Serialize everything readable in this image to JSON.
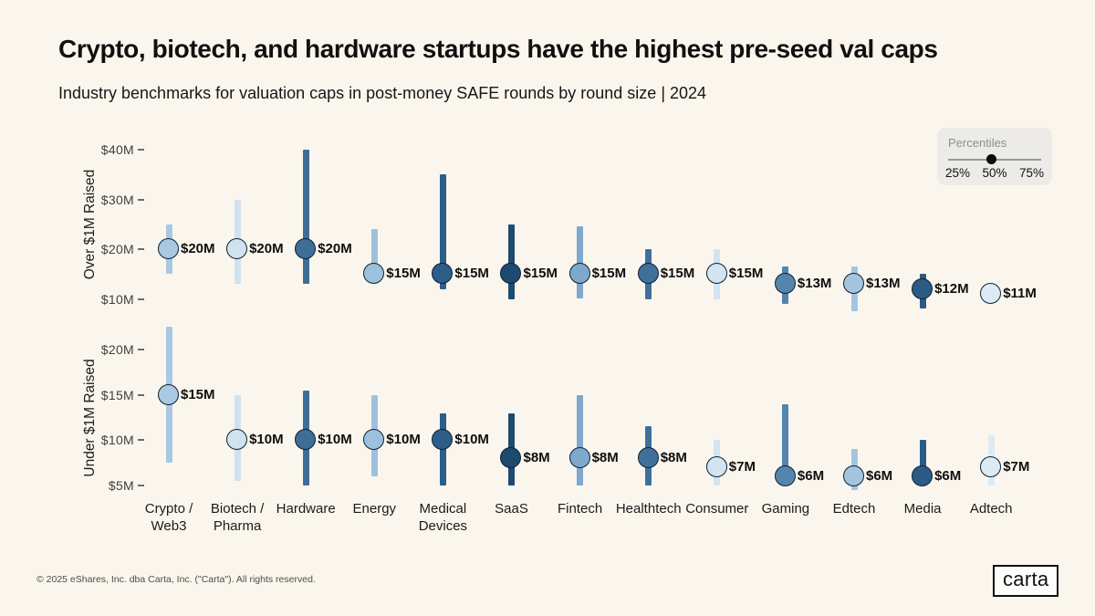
{
  "header": {
    "title": "Crypto, biotech, and hardware startups have the highest pre-seed val caps",
    "subtitle": "Industry benchmarks for valuation caps in post-money SAFE rounds by round size | 2024"
  },
  "legend": {
    "title": "Percentiles",
    "ticks": [
      "25%",
      "50%",
      "75%"
    ]
  },
  "footer": {
    "copyright": "© 2025 eShares, Inc. dba Carta, Inc. (\"Carta\"). All rights reserved.",
    "logo_text": "carta"
  },
  "colors": {
    "background": "#FAF6ED",
    "dot_outline": "#0D2133",
    "legend_background": "#ECEBE7"
  },
  "chart_data": {
    "type": "range-dot",
    "title": "Crypto, biotech, and hardware startups have the highest pre-seed val caps",
    "subtitle": "Industry benchmarks for valuation caps in post-money SAFE rounds by round size | 2024",
    "legend": "Percentiles: 25% 50% 75% (bar = 25th–75th percentile, dot = median)",
    "categories": [
      "Crypto /\nWeb3",
      "Biotech /\nPharma",
      "Hardware",
      "Energy",
      "Medical\nDevices",
      "SaaS",
      "Fintech",
      "Healthtech",
      "Consumer",
      "Gaming",
      "Edtech",
      "Media",
      "Adtech"
    ],
    "industry_colors": [
      "#A9C8E2",
      "#D0E1EF",
      "#3E6D96",
      "#9DC1DD",
      "#2C5E88",
      "#1F4A70",
      "#7FA9CC",
      "#40709A",
      "#D2E4F1",
      "#5585AD",
      "#A4C5E0",
      "#2B5A84",
      "#DCEAF5"
    ],
    "unit": "USD millions (valuation cap)",
    "panels": [
      {
        "label": "Over $1M Raised",
        "ylim": [
          8.5,
          41.5
        ],
        "y_ticks": [
          {
            "value": 10,
            "label": "$10M"
          },
          {
            "value": 20,
            "label": "$20M"
          },
          {
            "value": 30,
            "label": "$30M"
          },
          {
            "value": 40,
            "label": "$40M"
          }
        ],
        "points": [
          {
            "category": "Crypto / Web3",
            "p25": 15,
            "p50": 20,
            "p75": 25,
            "label": "$20M"
          },
          {
            "category": "Biotech / Pharma",
            "p25": 13,
            "p50": 20,
            "p75": 30,
            "label": "$20M"
          },
          {
            "category": "Hardware",
            "p25": 13,
            "p50": 20,
            "p75": 40,
            "label": "$20M"
          },
          {
            "category": "Energy",
            "p25": 13,
            "p50": 15,
            "p75": 24,
            "label": "$15M"
          },
          {
            "category": "Medical Devices",
            "p25": 12,
            "p50": 15,
            "p75": 35,
            "label": "$15M"
          },
          {
            "category": "SaaS",
            "p25": 10,
            "p50": 15,
            "p75": 25,
            "label": "$15M"
          },
          {
            "category": "Fintech",
            "p25": 10,
            "p50": 15,
            "p75": 24.5,
            "label": "$15M"
          },
          {
            "category": "Healthtech",
            "p25": 10,
            "p50": 15,
            "p75": 20,
            "label": "$15M"
          },
          {
            "category": "Consumer",
            "p25": 10,
            "p50": 15,
            "p75": 20,
            "label": "$15M"
          },
          {
            "category": "Gaming",
            "p25": 9,
            "p50": 13,
            "p75": 16.5,
            "label": "$13M"
          },
          {
            "category": "Edtech",
            "p25": 7.5,
            "p50": 13,
            "p75": 16.5,
            "label": "$13M"
          },
          {
            "category": "Media",
            "p25": 8,
            "p50": 12,
            "p75": 15,
            "label": "$12M"
          },
          {
            "category": "Adtech",
            "p25": 11,
            "p50": 11,
            "p75": 11,
            "label": "$11M"
          }
        ]
      },
      {
        "label": "Under $1M Raised",
        "ylim": [
          4,
          23
        ],
        "y_ticks": [
          {
            "value": 5,
            "label": "$5M"
          },
          {
            "value": 10,
            "label": "$10M"
          },
          {
            "value": 15,
            "label": "$15M"
          },
          {
            "value": 20,
            "label": "$20M"
          }
        ],
        "points": [
          {
            "category": "Crypto / Web3",
            "p25": 7.5,
            "p50": 15,
            "p75": 22.5,
            "label": "$15M"
          },
          {
            "category": "Biotech / Pharma",
            "p25": 5.5,
            "p50": 10,
            "p75": 15,
            "label": "$10M"
          },
          {
            "category": "Hardware",
            "p25": 5,
            "p50": 10,
            "p75": 15.5,
            "label": "$10M"
          },
          {
            "category": "Energy",
            "p25": 6,
            "p50": 10,
            "p75": 15,
            "label": "$10M"
          },
          {
            "category": "Medical Devices",
            "p25": 5,
            "p50": 10,
            "p75": 13,
            "label": "$10M"
          },
          {
            "category": "SaaS",
            "p25": 5,
            "p50": 8,
            "p75": 13,
            "label": "$8M"
          },
          {
            "category": "Fintech",
            "p25": 5,
            "p50": 8,
            "p75": 15,
            "label": "$8M"
          },
          {
            "category": "Healthtech",
            "p25": 5,
            "p50": 8,
            "p75": 11.5,
            "label": "$8M"
          },
          {
            "category": "Consumer",
            "p25": 5,
            "p50": 7,
            "p75": 10,
            "label": "$7M"
          },
          {
            "category": "Gaming",
            "p25": 5,
            "p50": 6,
            "p75": 14,
            "label": "$6M"
          },
          {
            "category": "Edtech",
            "p25": 4.5,
            "p50": 6,
            "p75": 9,
            "label": "$6M"
          },
          {
            "category": "Media",
            "p25": 5,
            "p50": 6,
            "p75": 10,
            "label": "$6M"
          },
          {
            "category": "Adtech",
            "p25": 5,
            "p50": 7,
            "p75": 10.5,
            "label": "$7M"
          }
        ]
      }
    ]
  }
}
